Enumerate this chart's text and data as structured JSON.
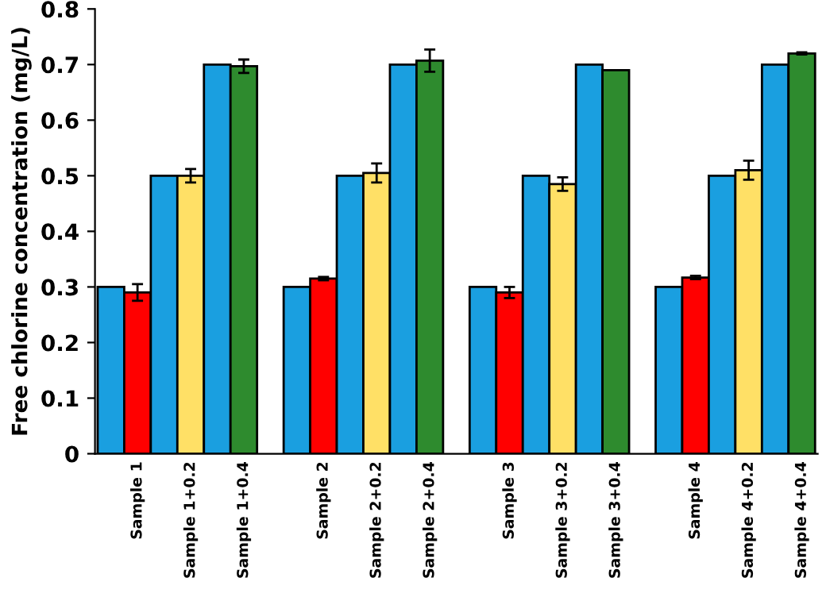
{
  "chart_data": {
    "type": "bar",
    "ylabel": "Free chlorine concentration (mg/L)",
    "categories": [
      null,
      "Sample 1",
      null,
      "Sample 1+0.2",
      null,
      "Sample 1+0.4",
      null,
      "Sample 2",
      null,
      "Sample 2+0.2",
      null,
      "Sample 2+0.4",
      null,
      "Sample 3",
      null,
      "Sample 3+0.2",
      null,
      "Sample 3+0.4",
      null,
      "Sample 4",
      null,
      "Sample 4+0.2",
      null,
      "Sample 4+0.4"
    ],
    "values": [
      0.3,
      0.29,
      0.5,
      0.5,
      0.7,
      0.697,
      0.3,
      0.315,
      0.5,
      0.505,
      0.7,
      0.707,
      0.3,
      0.29,
      0.5,
      0.485,
      0.7,
      0.69,
      0.3,
      0.317,
      0.5,
      0.51,
      0.7,
      0.72
    ],
    "errors": [
      null,
      0.015,
      null,
      0.012,
      null,
      0.012,
      null,
      0.003,
      null,
      0.017,
      null,
      0.02,
      null,
      0.01,
      null,
      0.012,
      null,
      null,
      null,
      0.003,
      null,
      0.017,
      null,
      0.002
    ],
    "colors": [
      "#1a9fe0",
      "#ff0000",
      "#1a9fe0",
      "#ffe066",
      "#1a9fe0",
      "#2e8b2e",
      "#1a9fe0",
      "#ff0000",
      "#1a9fe0",
      "#ffe066",
      "#1a9fe0",
      "#2e8b2e",
      "#1a9fe0",
      "#ff0000",
      "#1a9fe0",
      "#ffe066",
      "#1a9fe0",
      "#2e8b2e",
      "#1a9fe0",
      "#ff0000",
      "#1a9fe0",
      "#ffe066",
      "#1a9fe0",
      "#2e8b2e"
    ],
    "ylim": [
      0,
      0.8
    ],
    "yticks": [
      {
        "value": 0,
        "label": "0"
      },
      0.1,
      0.2,
      0.3,
      0.4,
      0.5,
      0.6,
      0.7,
      0.8
    ],
    "grid": false,
    "legend": false
  }
}
